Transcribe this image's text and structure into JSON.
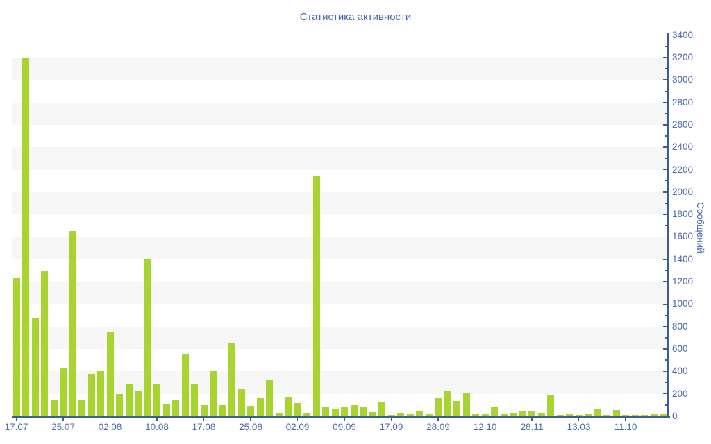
{
  "chart_data": {
    "type": "bar",
    "title": "Статистика активности",
    "ylabel": "Сообщений",
    "ylim": [
      0,
      3400
    ],
    "y_tick_step": 200,
    "y_minor_tick_step": 100,
    "legend": "none",
    "grid": "alternating horizontal stripes every 200 units",
    "x_tick_labels": [
      "17.07",
      "25.07",
      "02.08",
      "10.08",
      "17.08",
      "25.08",
      "02.09",
      "09.09",
      "17.09",
      "28.09",
      "12.10",
      "28.11",
      "13.03",
      "11.10"
    ],
    "x_ticks_every_n_bars": 5,
    "values": [
      1230,
      3200,
      870,
      1300,
      145,
      430,
      1650,
      145,
      380,
      400,
      750,
      195,
      290,
      230,
      1400,
      285,
      110,
      150,
      560,
      290,
      100,
      400,
      100,
      650,
      240,
      90,
      170,
      320,
      30,
      175,
      115,
      30,
      2150,
      80,
      70,
      80,
      100,
      85,
      40,
      125,
      15,
      25,
      20,
      50,
      20,
      165,
      230,
      135,
      205,
      20,
      20,
      80,
      20,
      30,
      45,
      50,
      30,
      185,
      15,
      20,
      15,
      20,
      65,
      15,
      55,
      10,
      12,
      15,
      20,
      20
    ],
    "colors": {
      "bar": "#a8d430",
      "stripe": "#f6f6f6",
      "axis_line": "#3c5d9c",
      "tick_label": "#4a6aad",
      "title": "#3f66b0"
    }
  }
}
